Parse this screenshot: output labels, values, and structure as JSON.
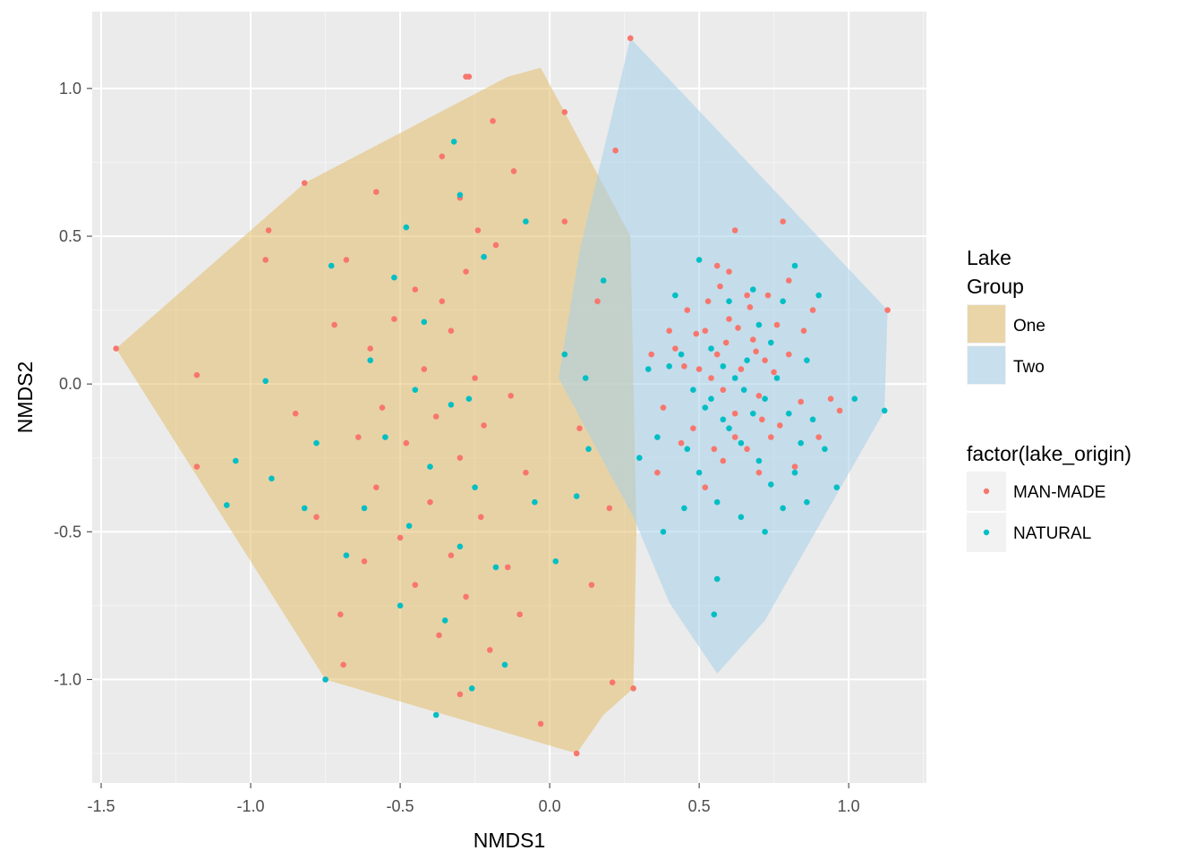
{
  "chart_data": {
    "type": "scatter",
    "xlabel": "NMDS1",
    "ylabel": "NMDS2",
    "xlim": [
      -1.53,
      1.26
    ],
    "ylim": [
      -1.35,
      1.26
    ],
    "x_ticks": [
      -1.5,
      -1.0,
      -0.5,
      0.0,
      0.5,
      1.0
    ],
    "x_tick_labels": [
      "-1.5",
      "-1.0",
      "-0.5",
      "0.0",
      "0.5",
      "1.0"
    ],
    "y_ticks": [
      -1.0,
      -0.5,
      0.0,
      0.5,
      1.0
    ],
    "y_tick_labels": [
      "-1.0",
      "-0.5",
      "0.0",
      "0.5",
      "1.0"
    ],
    "grid": true,
    "background": "#ebebeb",
    "legend_position": "right",
    "hull_legend": {
      "title_lines": [
        "Lake",
        "Group"
      ],
      "entries": [
        {
          "label": "One",
          "color": "#e3bd6c"
        },
        {
          "label": "Two",
          "color": "#a5cfe9"
        }
      ]
    },
    "point_legend": {
      "title": "factor(lake_origin)",
      "entries": [
        {
          "label": "MAN-MADE",
          "color": "#f8766d"
        },
        {
          "label": "NATURAL",
          "color": "#00bfc4"
        }
      ]
    },
    "hulls": [
      {
        "name": "One",
        "color": "#e3bd6c",
        "opacity": 0.55,
        "vertices": [
          [
            -1.45,
            0.12
          ],
          [
            -0.82,
            0.68
          ],
          [
            -0.14,
            1.04
          ],
          [
            -0.03,
            1.07
          ],
          [
            0.05,
            0.92
          ],
          [
            0.27,
            0.5
          ],
          [
            0.29,
            -0.5
          ],
          [
            0.28,
            -1.03
          ],
          [
            0.18,
            -1.12
          ],
          [
            0.09,
            -1.25
          ],
          [
            -0.75,
            -1.0
          ]
        ]
      },
      {
        "name": "Two",
        "color": "#a5cfe9",
        "opacity": 0.55,
        "vertices": [
          [
            0.27,
            1.17
          ],
          [
            1.13,
            0.25
          ],
          [
            1.12,
            -0.09
          ],
          [
            0.72,
            -0.8
          ],
          [
            0.56,
            -0.98
          ],
          [
            0.4,
            -0.74
          ],
          [
            0.28,
            -0.45
          ],
          [
            0.03,
            0.02
          ],
          [
            0.1,
            0.45
          ]
        ]
      }
    ],
    "series": [
      {
        "name": "MAN-MADE",
        "color": "#f8766d",
        "points": [
          [
            -1.45,
            0.12
          ],
          [
            -1.18,
            0.03
          ],
          [
            -1.18,
            -0.28
          ],
          [
            -0.95,
            0.42
          ],
          [
            -0.94,
            0.52
          ],
          [
            -0.82,
            0.68
          ],
          [
            -0.75,
            -1.0
          ],
          [
            -0.69,
            -0.95
          ],
          [
            -0.28,
            1.04
          ],
          [
            -0.27,
            1.04
          ],
          [
            0.27,
            1.17
          ],
          [
            0.09,
            -1.25
          ],
          [
            0.28,
            -1.03
          ],
          [
            0.21,
            -1.01
          ],
          [
            0.05,
            0.92
          ],
          [
            0.22,
            0.79
          ],
          [
            1.13,
            0.25
          ],
          [
            0.78,
            0.55
          ],
          [
            0.62,
            0.52
          ],
          [
            0.94,
            -0.05
          ],
          [
            0.97,
            -0.09
          ],
          [
            -0.19,
            0.89
          ],
          [
            -0.36,
            0.77
          ],
          [
            -0.3,
            0.63
          ],
          [
            -0.24,
            0.52
          ],
          [
            -0.18,
            0.47
          ],
          [
            -0.28,
            0.38
          ],
          [
            -0.45,
            0.32
          ],
          [
            -0.36,
            0.28
          ],
          [
            -0.52,
            0.22
          ],
          [
            -0.33,
            0.18
          ],
          [
            -0.6,
            0.12
          ],
          [
            -0.42,
            0.05
          ],
          [
            -0.25,
            0.02
          ],
          [
            -0.13,
            -0.04
          ],
          [
            -0.56,
            -0.08
          ],
          [
            -0.38,
            -0.11
          ],
          [
            -0.22,
            -0.14
          ],
          [
            -0.48,
            -0.2
          ],
          [
            -0.3,
            -0.25
          ],
          [
            -0.08,
            -0.3
          ],
          [
            -0.58,
            -0.35
          ],
          [
            -0.4,
            -0.4
          ],
          [
            -0.23,
            -0.45
          ],
          [
            -0.5,
            -0.52
          ],
          [
            -0.33,
            -0.58
          ],
          [
            -0.14,
            -0.62
          ],
          [
            -0.45,
            -0.68
          ],
          [
            -0.28,
            -0.72
          ],
          [
            -0.1,
            -0.78
          ],
          [
            -0.37,
            -0.85
          ],
          [
            -0.2,
            -0.9
          ],
          [
            -0.3,
            -1.05
          ],
          [
            -0.03,
            -1.15
          ],
          [
            0.14,
            -0.68
          ],
          [
            0.2,
            -0.42
          ],
          [
            0.1,
            -0.15
          ],
          [
            0.16,
            0.28
          ],
          [
            0.05,
            0.55
          ],
          [
            -0.12,
            0.72
          ],
          [
            -0.58,
            0.65
          ],
          [
            -0.68,
            0.42
          ],
          [
            -0.72,
            0.2
          ],
          [
            -0.85,
            -0.1
          ],
          [
            -0.64,
            -0.18
          ],
          [
            -0.78,
            -0.45
          ],
          [
            -0.62,
            -0.6
          ],
          [
            -0.7,
            -0.78
          ],
          [
            0.52,
            0.18
          ],
          [
            0.56,
            0.1
          ],
          [
            0.6,
            0.22
          ],
          [
            0.64,
            0.05
          ],
          [
            0.68,
            0.15
          ],
          [
            0.72,
            0.08
          ],
          [
            0.58,
            -0.02
          ],
          [
            0.62,
            -0.1
          ],
          [
            0.7,
            -0.04
          ],
          [
            0.76,
            0.2
          ],
          [
            0.5,
            0.05
          ],
          [
            0.46,
            0.25
          ],
          [
            0.8,
            0.1
          ],
          [
            0.84,
            -0.06
          ],
          [
            0.74,
            -0.18
          ],
          [
            0.55,
            -0.22
          ],
          [
            0.66,
            0.3
          ],
          [
            0.48,
            -0.15
          ],
          [
            0.88,
            0.25
          ],
          [
            0.6,
            0.38
          ],
          [
            0.42,
            0.12
          ],
          [
            0.38,
            -0.08
          ],
          [
            0.52,
            -0.35
          ],
          [
            0.7,
            -0.3
          ],
          [
            0.82,
            -0.28
          ],
          [
            0.9,
            -0.18
          ],
          [
            0.36,
            -0.3
          ],
          [
            0.54,
            0.02
          ],
          [
            0.59,
            0.14
          ],
          [
            0.63,
            0.19
          ],
          [
            0.67,
            0.26
          ],
          [
            0.73,
            0.3
          ],
          [
            0.57,
            0.33
          ],
          [
            0.53,
            0.28
          ],
          [
            0.49,
            0.17
          ],
          [
            0.45,
            0.06
          ],
          [
            0.62,
            -0.18
          ],
          [
            0.66,
            -0.22
          ],
          [
            0.58,
            -0.26
          ],
          [
            0.69,
            0.11
          ],
          [
            0.75,
            0.04
          ],
          [
            0.71,
            -0.12
          ],
          [
            0.77,
            -0.14
          ],
          [
            0.44,
            -0.2
          ],
          [
            0.4,
            0.18
          ],
          [
            0.34,
            0.1
          ],
          [
            0.56,
            0.4
          ],
          [
            0.8,
            0.35
          ],
          [
            0.85,
            0.18
          ]
        ]
      },
      {
        "name": "NATURAL",
        "color": "#00bfc4",
        "points": [
          [
            -1.08,
            -0.41
          ],
          [
            -1.05,
            -0.26
          ],
          [
            -0.95,
            0.01
          ],
          [
            -0.93,
            -0.32
          ],
          [
            -0.75,
            -1.0
          ],
          [
            -0.38,
            -1.12
          ],
          [
            -0.26,
            -1.03
          ],
          [
            -0.73,
            0.4
          ],
          [
            -0.48,
            0.53
          ],
          [
            -0.32,
            0.82
          ],
          [
            -0.3,
            0.64
          ],
          [
            -0.22,
            0.43
          ],
          [
            -0.52,
            0.36
          ],
          [
            -0.42,
            0.21
          ],
          [
            -0.6,
            0.08
          ],
          [
            -0.45,
            -0.02
          ],
          [
            -0.33,
            -0.07
          ],
          [
            -0.27,
            -0.05
          ],
          [
            -0.55,
            -0.18
          ],
          [
            -0.4,
            -0.28
          ],
          [
            -0.25,
            -0.35
          ],
          [
            -0.62,
            -0.42
          ],
          [
            -0.47,
            -0.48
          ],
          [
            -0.3,
            -0.55
          ],
          [
            -0.18,
            -0.62
          ],
          [
            -0.5,
            -0.75
          ],
          [
            -0.35,
            -0.8
          ],
          [
            -0.15,
            -0.95
          ],
          [
            -0.05,
            -0.4
          ],
          [
            0.02,
            -0.6
          ],
          [
            0.09,
            -0.38
          ],
          [
            0.13,
            -0.22
          ],
          [
            0.05,
            0.1
          ],
          [
            0.12,
            0.02
          ],
          [
            0.18,
            0.35
          ],
          [
            -0.08,
            0.55
          ],
          [
            -0.68,
            -0.58
          ],
          [
            -0.78,
            -0.2
          ],
          [
            -0.82,
            -0.42
          ],
          [
            0.56,
            -0.66
          ],
          [
            0.55,
            -0.78
          ],
          [
            0.6,
            -0.15
          ],
          [
            0.64,
            -0.2
          ],
          [
            0.68,
            -0.1
          ],
          [
            0.72,
            -0.05
          ],
          [
            0.76,
            0.02
          ],
          [
            0.52,
            -0.08
          ],
          [
            0.48,
            -0.02
          ],
          [
            0.44,
            0.1
          ],
          [
            0.7,
            0.2
          ],
          [
            0.74,
            0.14
          ],
          [
            0.62,
            0.02
          ],
          [
            0.58,
            0.06
          ],
          [
            0.66,
            0.08
          ],
          [
            0.8,
            -0.1
          ],
          [
            0.84,
            -0.2
          ],
          [
            0.88,
            -0.12
          ],
          [
            0.92,
            -0.22
          ],
          [
            0.5,
            -0.3
          ],
          [
            0.56,
            -0.4
          ],
          [
            0.64,
            -0.45
          ],
          [
            0.72,
            -0.5
          ],
          [
            0.36,
            -0.18
          ],
          [
            0.4,
            0.06
          ],
          [
            0.46,
            -0.22
          ],
          [
            0.54,
            0.12
          ],
          [
            0.6,
            0.28
          ],
          [
            0.68,
            0.32
          ],
          [
            0.78,
            0.28
          ],
          [
            0.86,
            0.08
          ],
          [
            1.12,
            -0.09
          ],
          [
            1.02,
            -0.05
          ],
          [
            0.96,
            -0.35
          ],
          [
            0.54,
            -0.05
          ],
          [
            0.58,
            -0.12
          ],
          [
            0.65,
            -0.02
          ],
          [
            0.7,
            -0.26
          ],
          [
            0.74,
            -0.34
          ],
          [
            0.82,
            -0.3
          ],
          [
            0.45,
            -0.42
          ],
          [
            0.38,
            -0.5
          ],
          [
            0.42,
            0.3
          ],
          [
            0.82,
            0.4
          ],
          [
            0.9,
            0.3
          ],
          [
            0.5,
            0.42
          ],
          [
            0.78,
            -0.42
          ],
          [
            0.86,
            -0.4
          ],
          [
            0.3,
            -0.25
          ],
          [
            0.33,
            0.05
          ]
        ]
      }
    ]
  }
}
